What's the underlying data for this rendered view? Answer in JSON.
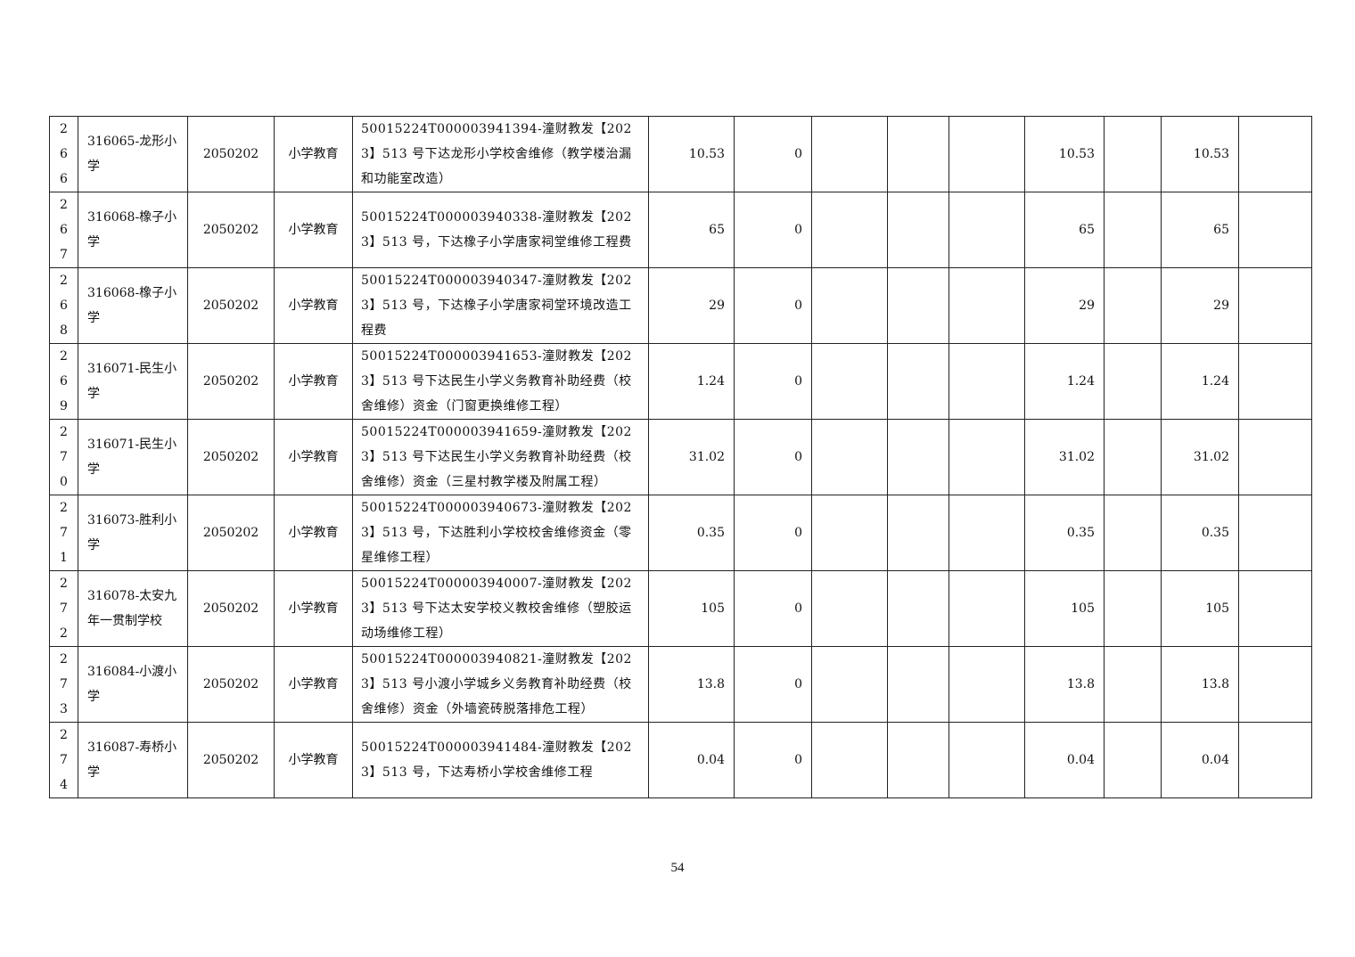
{
  "table": {
    "rows": [
      {
        "seq": "266",
        "unit": "316065-龙形小学",
        "code": "2050202",
        "category": "小学教育",
        "project": "50015224T000003941394-潼财教发【2023】513 号下达龙形小学校舍维修（教学楼治漏和功能室改造）",
        "c1": "10.53",
        "c2": "0",
        "c3": "",
        "c4": "",
        "c5": "",
        "c6": "10.53",
        "c7": "",
        "c8": "10.53",
        "c9": ""
      },
      {
        "seq": "267",
        "unit": "316068-橡子小学",
        "code": "2050202",
        "category": "小学教育",
        "project": "50015224T000003940338-潼财教发【2023】513 号，下达橡子小学唐家祠堂维修工程费",
        "c1": "65",
        "c2": "0",
        "c3": "",
        "c4": "",
        "c5": "",
        "c6": "65",
        "c7": "",
        "c8": "65",
        "c9": ""
      },
      {
        "seq": "268",
        "unit": "316068-橡子小学",
        "code": "2050202",
        "category": "小学教育",
        "project": "50015224T000003940347-潼财教发【2023】513 号，下达橡子小学唐家祠堂环境改造工程费",
        "c1": "29",
        "c2": "0",
        "c3": "",
        "c4": "",
        "c5": "",
        "c6": "29",
        "c7": "",
        "c8": "29",
        "c9": ""
      },
      {
        "seq": "269",
        "unit": "316071-民生小学",
        "code": "2050202",
        "category": "小学教育",
        "project": "50015224T000003941653-潼财教发【2023】513 号下达民生小学义务教育补助经费（校舍维修）资金（门窗更换维修工程）",
        "c1": "1.24",
        "c2": "0",
        "c3": "",
        "c4": "",
        "c5": "",
        "c6": "1.24",
        "c7": "",
        "c8": "1.24",
        "c9": ""
      },
      {
        "seq": "270",
        "unit": "316071-民生小学",
        "code": "2050202",
        "category": "小学教育",
        "project": "50015224T000003941659-潼财教发【2023】513 号下达民生小学义务教育补助经费（校舍维修）资金（三星村教学楼及附属工程）",
        "c1": "31.02",
        "c2": "0",
        "c3": "",
        "c4": "",
        "c5": "",
        "c6": "31.02",
        "c7": "",
        "c8": "31.02",
        "c9": ""
      },
      {
        "seq": "271",
        "unit": "316073-胜利小学",
        "code": "2050202",
        "category": "小学教育",
        "project": "50015224T000003940673-潼财教发【2023】513 号，下达胜利小学校校舍维修资金（零星维修工程）",
        "c1": "0.35",
        "c2": "0",
        "c3": "",
        "c4": "",
        "c5": "",
        "c6": "0.35",
        "c7": "",
        "c8": "0.35",
        "c9": ""
      },
      {
        "seq": "272",
        "unit": "316078-太安九年一贯制学校",
        "code": "2050202",
        "category": "小学教育",
        "project": "50015224T000003940007-潼财教发【2023】513 号下达太安学校义教校舍维修（塑胶运动场维修工程）",
        "c1": "105",
        "c2": "0",
        "c3": "",
        "c4": "",
        "c5": "",
        "c6": "105",
        "c7": "",
        "c8": "105",
        "c9": ""
      },
      {
        "seq": "273",
        "unit": "316084-小渡小学",
        "code": "2050202",
        "category": "小学教育",
        "project": "50015224T000003940821-潼财教发【2023】513 号小渡小学城乡义务教育补助经费（校舍维修）资金（外墙瓷砖脱落排危工程）",
        "c1": "13.8",
        "c2": "0",
        "c3": "",
        "c4": "",
        "c5": "",
        "c6": "13.8",
        "c7": "",
        "c8": "13.8",
        "c9": ""
      },
      {
        "seq": "274",
        "unit": "316087-寿桥小学",
        "code": "2050202",
        "category": "小学教育",
        "project": "50015224T000003941484-潼财教发【2023】513 号，下达寿桥小学校舍维修工程",
        "c1": "0.04",
        "c2": "0",
        "c3": "",
        "c4": "",
        "c5": "",
        "c6": "0.04",
        "c7": "",
        "c8": "0.04",
        "c9": ""
      }
    ]
  },
  "footer": {
    "page_number": "54"
  }
}
